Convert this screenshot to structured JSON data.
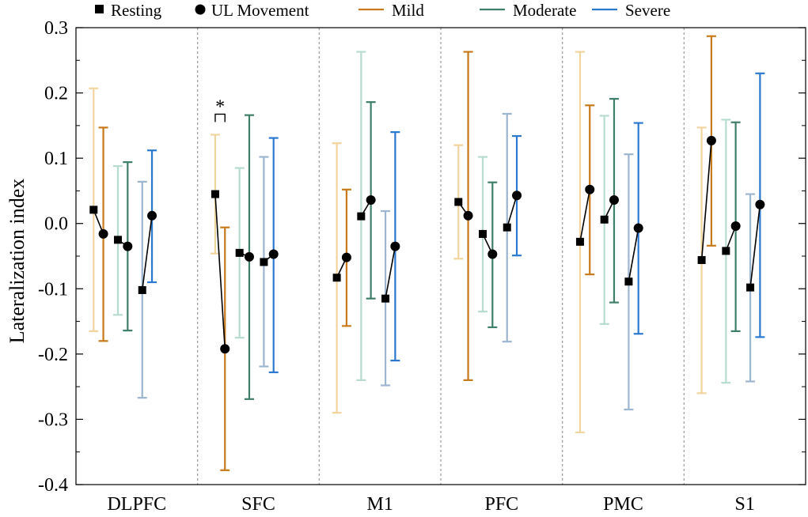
{
  "chart_data": {
    "type": "scatter",
    "title": "",
    "xlabel": "",
    "ylabel": "Lateralization index",
    "ylim": [
      -0.4,
      0.3
    ],
    "yticks": [
      -0.4,
      -0.3,
      -0.2,
      -0.1,
      0.0,
      0.1,
      0.2,
      0.3
    ],
    "ytick_labels": [
      "-0.4",
      "-0.3",
      "-0.2",
      "-0.1",
      "0.0",
      "0.1",
      "0.2",
      "0.3"
    ],
    "categories": [
      "DLPFC",
      "SFC",
      "M1",
      "PFC",
      "PMC",
      "S1"
    ],
    "conditions": [
      "Resting",
      "UL Movement"
    ],
    "legend": {
      "placement": "top",
      "entries": [
        {
          "label": "Resting",
          "marker": "square"
        },
        {
          "label": "UL Movement",
          "marker": "circle"
        },
        {
          "label": "Mild",
          "color": "#c8791a"
        },
        {
          "label": "Moderate",
          "color": "#3f7f68"
        },
        {
          "label": "Severe",
          "color": "#2b78d0"
        }
      ]
    },
    "series": [
      {
        "name": "Mild",
        "color": "#c8791a",
        "light_color": "#f2d49e",
        "resting": {
          "mean": [
            0.021,
            0.045,
            -0.083,
            0.033,
            -0.028,
            -0.056
          ],
          "lower": [
            -0.165,
            -0.046,
            -0.29,
            -0.054,
            -0.32,
            -0.26
          ],
          "upper": [
            0.207,
            0.136,
            0.123,
            0.12,
            0.263,
            0.147
          ]
        },
        "movement": {
          "mean": [
            -0.016,
            -0.192,
            -0.052,
            0.012,
            0.052,
            0.127
          ],
          "lower": [
            -0.18,
            -0.378,
            -0.157,
            -0.24,
            -0.078,
            -0.034
          ],
          "upper": [
            0.147,
            -0.006,
            0.052,
            0.263,
            0.181,
            0.287
          ]
        }
      },
      {
        "name": "Moderate",
        "color": "#3f7f68",
        "light_color": "#b7dccf",
        "resting": {
          "mean": [
            -0.025,
            -0.045,
            0.011,
            -0.016,
            0.006,
            -0.042
          ],
          "lower": [
            -0.14,
            -0.175,
            -0.24,
            -0.135,
            -0.154,
            -0.244
          ],
          "upper": [
            0.088,
            0.085,
            0.263,
            0.102,
            0.165,
            0.159
          ]
        },
        "movement": {
          "mean": [
            -0.035,
            -0.051,
            0.036,
            -0.047,
            0.036,
            -0.004
          ],
          "lower": [
            -0.164,
            -0.269,
            -0.115,
            -0.159,
            -0.121,
            -0.165
          ],
          "upper": [
            0.094,
            0.166,
            0.186,
            0.063,
            0.191,
            0.155
          ]
        }
      },
      {
        "name": "Severe",
        "color": "#2b78d0",
        "light_color": "#9cb5d0",
        "resting": {
          "mean": [
            -0.102,
            -0.059,
            -0.115,
            -0.006,
            -0.089,
            -0.098
          ],
          "lower": [
            -0.267,
            -0.219,
            -0.248,
            -0.181,
            -0.285,
            -0.242
          ],
          "upper": [
            0.064,
            0.102,
            0.019,
            0.168,
            0.106,
            0.045
          ]
        },
        "movement": {
          "mean": [
            0.012,
            -0.047,
            -0.035,
            0.043,
            -0.007,
            0.029
          ],
          "lower": [
            -0.09,
            -0.228,
            -0.21,
            -0.049,
            -0.169,
            -0.174
          ],
          "upper": [
            0.112,
            0.131,
            0.14,
            0.134,
            0.154,
            0.23
          ]
        }
      }
    ],
    "annotations": [
      {
        "text": "*",
        "category": "SFC",
        "group": "Mild",
        "type": "significance-bracket"
      }
    ]
  }
}
